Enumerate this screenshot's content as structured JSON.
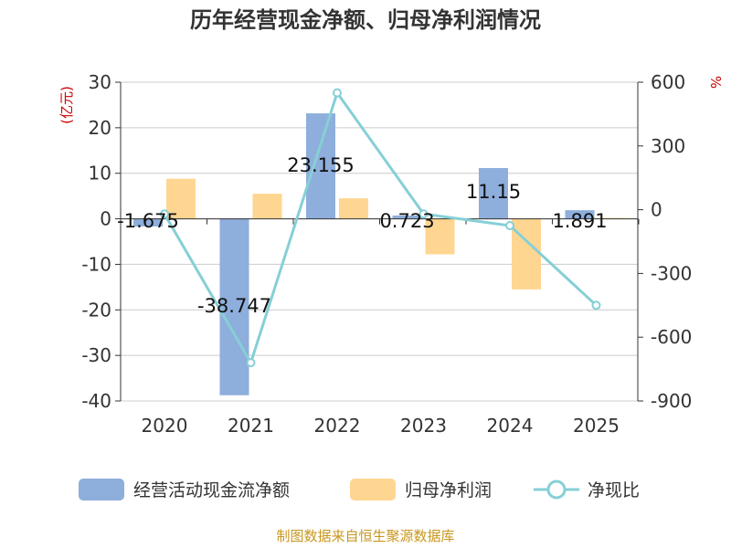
{
  "chart_data": {
    "type": "bar+line",
    "title": "历年经营现金净额、归母净利润情况",
    "categories": [
      "2020",
      "2021",
      "2022",
      "2023",
      "2024",
      "2025"
    ],
    "y_left": {
      "unit_label": "(亿元)",
      "ylim": [
        -40,
        30
      ],
      "ticks": [
        "30",
        "20",
        "10",
        "0",
        "-10",
        "-20",
        "-30",
        "-40"
      ]
    },
    "y_right": {
      "unit_label": "%",
      "ylim": [
        -900,
        600
      ],
      "ticks": [
        "600",
        "300",
        "0",
        "-300",
        "-600",
        "-900"
      ]
    },
    "series": [
      {
        "name": "经营活动现金流净额",
        "kind": "bar",
        "axis": "left",
        "color": "#8eaedc",
        "values": [
          -1.675,
          -38.747,
          23.155,
          0.723,
          11.15,
          1.891
        ],
        "labels": [
          "-1.675",
          "-38.747",
          "23.155",
          "0.723",
          "11.15",
          "1.891"
        ]
      },
      {
        "name": "归母净利润",
        "kind": "bar",
        "axis": "left",
        "color": "#ffd691",
        "values": [
          8.8,
          5.5,
          4.5,
          -7.8,
          -15.5,
          0.2
        ]
      },
      {
        "name": "净现比",
        "kind": "line",
        "axis": "right",
        "color": "#86cfd6",
        "values": [
          -20,
          -720,
          550,
          -20,
          -75,
          -450
        ]
      }
    ],
    "legend_position": "bottom",
    "grid": true
  },
  "footer": {
    "source": "制图数据来自恒生聚源数据库"
  },
  "colors": {
    "title": "#333333",
    "axis_unit": "#cc0000",
    "tick": "#333333",
    "footer": "#c8961e",
    "grid": "#cccccc"
  }
}
